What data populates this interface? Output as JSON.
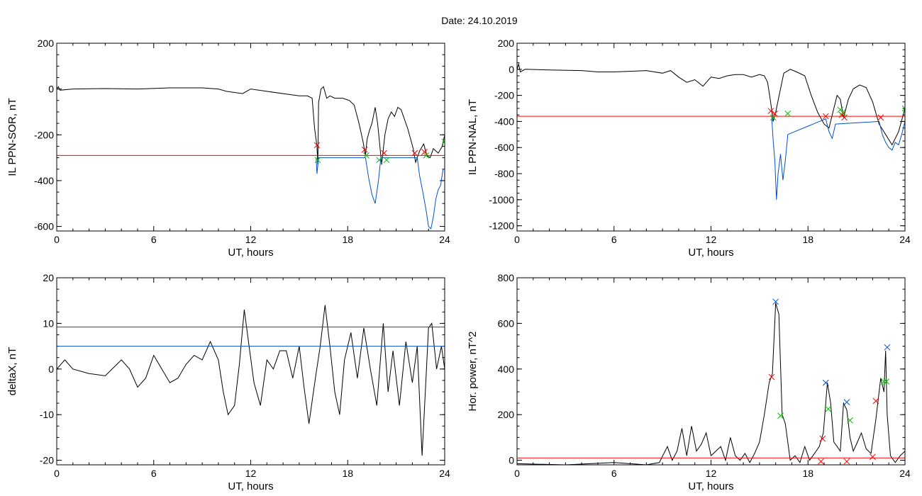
{
  "figure": {
    "title": "Date:  24.10.2019"
  },
  "chart_data": [
    {
      "type": "line",
      "id": "ppn-sor",
      "ylabel": "IL PPN-SOR, nT",
      "xlabel": "UT, hours",
      "xlim": [
        0,
        24
      ],
      "ylim": [
        -620,
        200
      ],
      "xticks": [
        0,
        6,
        12,
        18,
        24
      ],
      "yticks": [
        200,
        0,
        -200,
        -400,
        -600
      ],
      "ytick_labels": [
        "200",
        "0",
        "-200",
        "-400",
        "-600"
      ],
      "series": [
        {
          "color": "#000000",
          "x": [
            0,
            0.1,
            0.2,
            1,
            3,
            5,
            7,
            9,
            10,
            10.5,
            11,
            11.5,
            12,
            13,
            14,
            15,
            15.5,
            15.8,
            15.95,
            16.1,
            16.15,
            16.2,
            16.35,
            16.5,
            16.7,
            16.9,
            17.2,
            17.7,
            18.1,
            18.4,
            18.7,
            18.95,
            19.1,
            19.2,
            19.35,
            19.5,
            19.7,
            19.85,
            19.95,
            20.1,
            20.3,
            20.5,
            20.7,
            20.9,
            21.1,
            21.3,
            21.5,
            21.7,
            21.9,
            22.05,
            22.2,
            22.45,
            22.7,
            22.9,
            23.1,
            23.3,
            23.6,
            23.85,
            24
          ],
          "y": [
            0,
            10,
            -5,
            0,
            2,
            0,
            5,
            5,
            0,
            -10,
            -15,
            -20,
            0,
            -10,
            -20,
            -30,
            -30,
            -40,
            -170,
            -250,
            -330,
            -60,
            0,
            10,
            -40,
            -30,
            -40,
            -40,
            -50,
            -70,
            -150,
            -230,
            -290,
            -220,
            -180,
            -150,
            -80,
            -150,
            -220,
            -330,
            -200,
            -130,
            -100,
            -120,
            -80,
            -90,
            -130,
            -170,
            -220,
            -260,
            -320,
            -270,
            -240,
            -290,
            -300,
            -260,
            -280,
            -250,
            -200
          ]
        },
        {
          "color": "#0050c8",
          "x": [
            16.05,
            16.1,
            16.2,
            19.1,
            19.3,
            19.5,
            19.7,
            19.9,
            20.05,
            20.15,
            20.35,
            22.3,
            22.45,
            22.65,
            22.85,
            23.0,
            23.15,
            23.3,
            23.45,
            23.6,
            23.75,
            23.9
          ],
          "y": [
            -300,
            -370,
            -300,
            -300,
            -390,
            -460,
            -500,
            -400,
            -300,
            -300,
            -300,
            -300,
            -380,
            -450,
            -530,
            -600,
            -610,
            -560,
            -480,
            -440,
            -420,
            -350
          ]
        },
        {
          "color": "#ff0000",
          "name": "threshold",
          "x": [
            0,
            24
          ],
          "y": [
            -290,
            -290
          ]
        }
      ],
      "markers": [
        {
          "color": "#ff0000",
          "points": [
            [
              16.1,
              -245
            ],
            [
              19.05,
              -265
            ],
            [
              20.25,
              -280
            ],
            [
              22.15,
              -280
            ],
            [
              22.75,
              -275
            ]
          ]
        },
        {
          "color": "#00c000",
          "points": [
            [
              16.15,
              -310
            ],
            [
              19.15,
              -290
            ],
            [
              19.95,
              -310
            ],
            [
              20.4,
              -310
            ],
            [
              22.85,
              -290
            ],
            [
              24.0,
              -230
            ]
          ]
        }
      ]
    },
    {
      "type": "line",
      "id": "ppn-nal",
      "ylabel": "IL PPN-NAL, nT",
      "xlabel": "UT, hours",
      "xlim": [
        0,
        24
      ],
      "ylim": [
        -1240,
        200
      ],
      "xticks": [
        0,
        6,
        12,
        18,
        24
      ],
      "yticks": [
        200,
        0,
        -200,
        -400,
        -600,
        -800,
        -1000,
        -1200
      ],
      "ytick_labels": [
        "200",
        "0",
        "-200",
        "-400",
        "-600",
        "-800",
        "-1000",
        "-1200"
      ],
      "series": [
        {
          "color": "#000000",
          "x": [
            0,
            0.1,
            0.2,
            0.5,
            2,
            4,
            5,
            6,
            7,
            8,
            9,
            9.5,
            10,
            10.5,
            11,
            11.5,
            12,
            12.5,
            13,
            13.5,
            14,
            14.5,
            15,
            15.3,
            15.5,
            15.7,
            15.85,
            16.0,
            16.2,
            16.5,
            16.9,
            17.3,
            17.8,
            18.2,
            18.6,
            19.0,
            19.3,
            19.6,
            19.8,
            20.0,
            20.2,
            20.5,
            20.8,
            21.2,
            21.6,
            22.0,
            22.4,
            22.8,
            23.2,
            23.6,
            24
          ],
          "y": [
            0,
            40,
            -20,
            0,
            -5,
            -10,
            -20,
            -20,
            -15,
            -10,
            -30,
            -10,
            -60,
            -100,
            -80,
            -130,
            -60,
            -70,
            -50,
            -40,
            -40,
            -60,
            -40,
            -50,
            -100,
            -260,
            -400,
            -330,
            -210,
            -30,
            0,
            -20,
            -50,
            -200,
            -330,
            -420,
            -450,
            -300,
            -200,
            -230,
            -370,
            -230,
            -150,
            -120,
            -140,
            -250,
            -420,
            -500,
            -580,
            -480,
            -300
          ]
        },
        {
          "color": "#0050c8",
          "x": [
            15.75,
            15.85,
            15.95,
            16.05,
            16.15,
            16.3,
            16.45,
            16.6,
            16.75,
            19.1,
            19.3,
            19.5,
            19.7,
            22.4,
            22.6,
            22.8,
            23.0,
            23.2,
            23.4,
            23.6,
            23.8,
            24
          ],
          "y": [
            -360,
            -550,
            -700,
            -1000,
            -800,
            -650,
            -850,
            -700,
            -500,
            -380,
            -480,
            -530,
            -420,
            -400,
            -500,
            -560,
            -600,
            -620,
            -560,
            -580,
            -500,
            -400
          ]
        },
        {
          "color": "#ff0000",
          "name": "threshold",
          "x": [
            0,
            24
          ],
          "y": [
            -360,
            -360
          ]
        }
      ],
      "markers": [
        {
          "color": "#ff0000",
          "points": [
            [
              15.7,
              -320
            ],
            [
              15.95,
              -340
            ],
            [
              19.1,
              -360
            ],
            [
              20.1,
              -350
            ],
            [
              20.25,
              -370
            ],
            [
              22.5,
              -370
            ]
          ]
        },
        {
          "color": "#00c000",
          "points": [
            [
              15.85,
              -370
            ],
            [
              16.75,
              -340
            ],
            [
              20.0,
              -310
            ],
            [
              20.15,
              -330
            ],
            [
              24.0,
              -300
            ]
          ]
        }
      ]
    },
    {
      "type": "line",
      "id": "deltax",
      "ylabel": "deltaX, nT",
      "xlabel": "UT, hours",
      "xlim": [
        0,
        24
      ],
      "ylim": [
        -21,
        20
      ],
      "xticks": [
        0,
        6,
        12,
        18,
        24
      ],
      "yticks": [
        20,
        10,
        0,
        -10,
        -20
      ],
      "ytick_labels": [
        "20",
        "10",
        "0",
        "-10",
        "-20"
      ],
      "series": [
        {
          "color": "#000000",
          "x": [
            0,
            0.5,
            1,
            2,
            3,
            4,
            4.5,
            5,
            5.5,
            6,
            6.5,
            7,
            7.5,
            8,
            8.5,
            9,
            9.5,
            10,
            10.3,
            10.6,
            11,
            11.3,
            11.6,
            11.9,
            12.2,
            12.6,
            13.0,
            13.4,
            13.8,
            14.2,
            14.6,
            15.0,
            15.3,
            15.6,
            16.0,
            16.3,
            16.6,
            16.9,
            17.2,
            17.5,
            17.8,
            18.2,
            18.6,
            19.0,
            19.4,
            19.8,
            20.2,
            20.5,
            20.8,
            21.2,
            21.6,
            22.0,
            22.3,
            22.6,
            22.8,
            23.0,
            23.2,
            23.5,
            23.8,
            24
          ],
          "y": [
            0,
            2,
            0,
            -1,
            -1.5,
            2,
            0,
            -4,
            -2,
            3,
            0,
            -3,
            -2,
            1,
            3,
            2,
            6,
            2,
            -5,
            -10,
            -8,
            1,
            13,
            5,
            -3,
            -8,
            2,
            0,
            4,
            4,
            -2,
            5,
            -4,
            -12,
            -2,
            5,
            14,
            5,
            -5,
            -10,
            2,
            8,
            -2,
            9,
            0,
            -8,
            10,
            -5,
            4,
            -8,
            6,
            -3,
            5,
            -19,
            -5,
            9,
            10,
            0,
            5,
            0
          ]
        },
        {
          "color": "#ff0000",
          "name": "threshold-high",
          "x": [
            0,
            24
          ],
          "y": [
            9.2,
            9.2
          ]
        },
        {
          "color": "#0050c8",
          "name": "threshold-low",
          "x": [
            0,
            24
          ],
          "y": [
            5,
            5
          ]
        }
      ],
      "markers": []
    },
    {
      "type": "line",
      "id": "hor-power",
      "ylabel": "Hor. power, nT^2",
      "xlabel": "UT, hours",
      "xlim": [
        0,
        24
      ],
      "ylim": [
        -20,
        800
      ],
      "xticks": [
        0,
        6,
        12,
        18,
        24
      ],
      "yticks": [
        800,
        600,
        400,
        200,
        0
      ],
      "ytick_labels": [
        "800",
        "600",
        "400",
        "200",
        "0"
      ],
      "series": [
        {
          "color": "#000000",
          "x": [
            0,
            3,
            6,
            8,
            8.8,
            9.3,
            9.6,
            9.9,
            10.2,
            10.5,
            10.8,
            11.1,
            11.4,
            11.7,
            12.0,
            12.3,
            12.6,
            12.9,
            13.2,
            13.5,
            13.8,
            14.1,
            14.4,
            14.7,
            15.0,
            15.3,
            15.6,
            15.8,
            16.0,
            16.2,
            16.4,
            16.6,
            16.9,
            17.2,
            17.5,
            17.8,
            18.1,
            18.4,
            18.7,
            18.95,
            19.2,
            19.4,
            19.6,
            19.8,
            20.0,
            20.2,
            20.4,
            20.6,
            20.8,
            21.0,
            21.3,
            21.6,
            21.9,
            22.2,
            22.5,
            22.7,
            22.8,
            22.9,
            23.1,
            23.4,
            23.7,
            24
          ],
          "y": [
            -15,
            -20,
            -10,
            -20,
            -10,
            60,
            0,
            40,
            140,
            20,
            150,
            40,
            70,
            120,
            20,
            40,
            60,
            0,
            100,
            20,
            0,
            30,
            -10,
            30,
            80,
            200,
            340,
            380,
            690,
            640,
            200,
            160,
            0,
            20,
            -10,
            60,
            0,
            30,
            60,
            120,
            340,
            250,
            80,
            60,
            40,
            250,
            220,
            100,
            40,
            70,
            120,
            50,
            30,
            180,
            360,
            300,
            480,
            200,
            20,
            -10,
            20,
            40
          ]
        },
        {
          "color": "#ff0000",
          "name": "threshold",
          "x": [
            0,
            24
          ],
          "y": [
            10,
            10
          ]
        }
      ],
      "markers": [
        {
          "color": "#0050c8",
          "points": [
            [
              16.0,
              695
            ],
            [
              19.1,
              340
            ],
            [
              20.4,
              255
            ],
            [
              22.9,
              495
            ]
          ]
        },
        {
          "color": "#ff0000",
          "points": [
            [
              15.75,
              365
            ],
            [
              18.9,
              95
            ],
            [
              18.8,
              -5
            ],
            [
              22.2,
              260
            ],
            [
              22.0,
              15
            ],
            [
              20.4,
              -5
            ]
          ]
        },
        {
          "color": "#00c000",
          "points": [
            [
              16.3,
              195
            ],
            [
              19.25,
              225
            ],
            [
              20.6,
              175
            ],
            [
              22.7,
              345
            ],
            [
              22.85,
              345
            ]
          ]
        }
      ]
    }
  ]
}
